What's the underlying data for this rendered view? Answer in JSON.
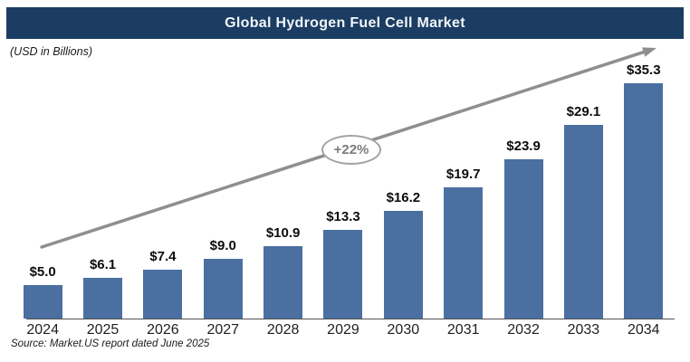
{
  "header": {
    "title": "Global Hydrogen Fuel Cell Market"
  },
  "subtitle": "(USD in Billions)",
  "source": "Source: Market.US report dated June 2025",
  "colors": {
    "header_bg": "#1c3d63",
    "title_text": "#f2f6fa",
    "bar": "#4b6fa1",
    "arrow": "#8f8f8f",
    "value_label": "#0d0d0d",
    "year_label": "#1f1f1f",
    "badge_border": "#a3a3a3",
    "badge_text": "#7d7d7d",
    "axis": "#555555",
    "text": "#1a1a1a"
  },
  "chart_data": {
    "type": "bar",
    "title": "Global Hydrogen Fuel Cell Market",
    "unit": "(USD in Billions)",
    "categories": [
      "2024",
      "2025",
      "2026",
      "2027",
      "2028",
      "2029",
      "2030",
      "2031",
      "2032",
      "2033",
      "2034"
    ],
    "values": [
      5.0,
      6.1,
      7.4,
      9.0,
      10.9,
      13.3,
      16.2,
      19.7,
      23.9,
      29.1,
      35.3
    ],
    "labels": [
      "$5.0",
      "$6.1",
      "$7.4",
      "$9.0",
      "$10.9",
      "$13.3",
      "$16.2",
      "$19.7",
      "$23.9",
      "$29.1",
      "$35.3"
    ],
    "xlabel": "",
    "ylabel": "USD in Billions",
    "ylim": [
      0,
      38
    ],
    "grid": false,
    "legend": false,
    "annotation": "+22%",
    "source": "Source: Market.US report dated June 2025"
  }
}
